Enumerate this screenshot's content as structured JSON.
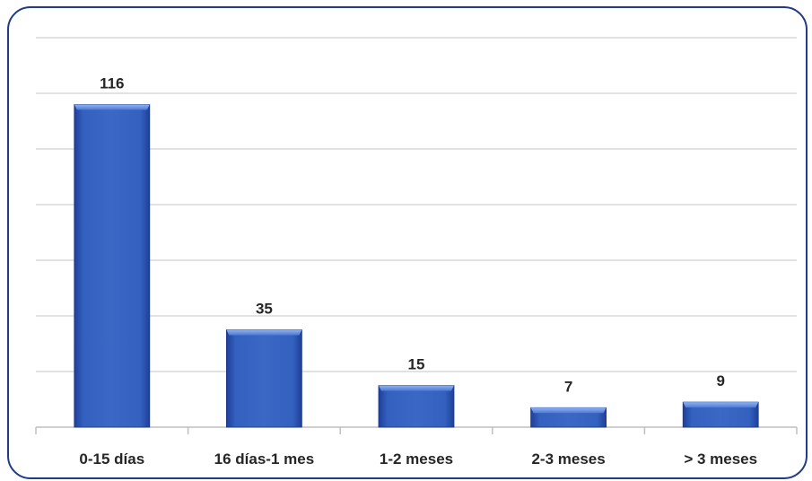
{
  "chart_data": {
    "type": "bar",
    "categories": [
      "0-15 días",
      "16 días-1 mes",
      "1-2 meses",
      "2-3 meses",
      "> 3 meses"
    ],
    "values": [
      116,
      35,
      15,
      7,
      9
    ],
    "ylim": [
      0,
      140
    ],
    "gridlines": [
      0,
      20,
      40,
      60,
      80,
      100,
      120,
      140
    ],
    "grid": true,
    "y_tick_labels_shown": false,
    "data_labels": [
      "116",
      "35",
      "15",
      "7",
      "9"
    ],
    "bar_color": "#3b67c5",
    "title": "",
    "xlabel": "",
    "ylabel": ""
  }
}
